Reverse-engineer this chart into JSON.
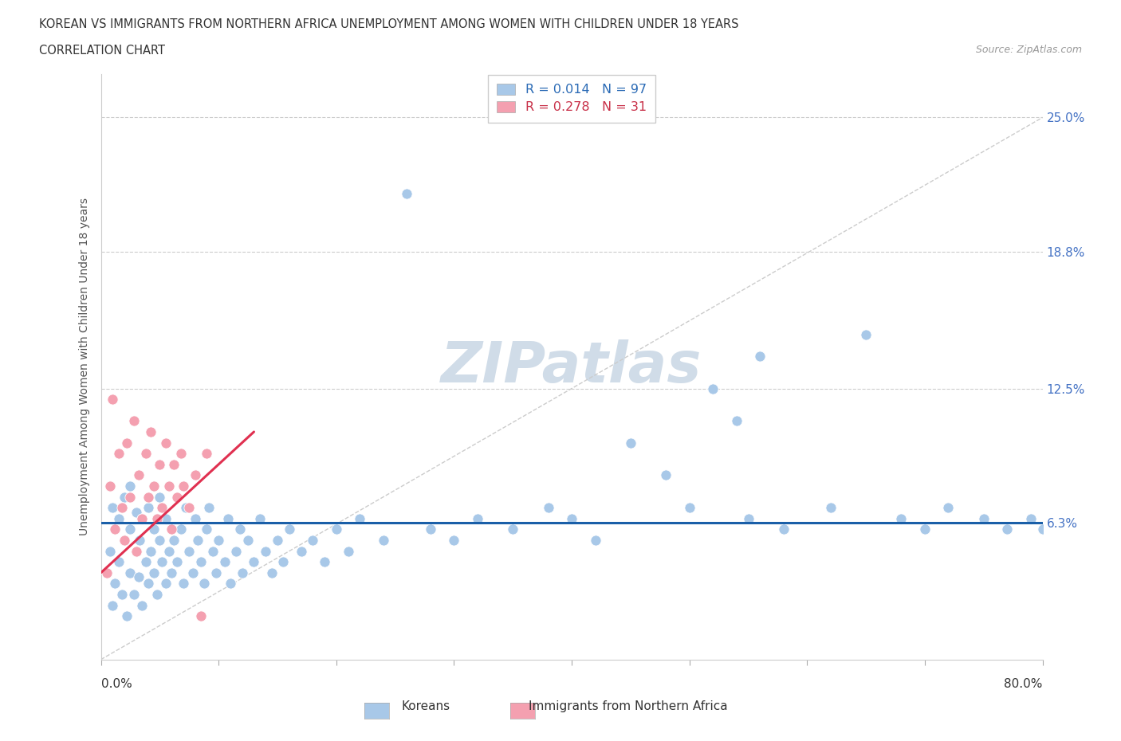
{
  "title_line1": "KOREAN VS IMMIGRANTS FROM NORTHERN AFRICA UNEMPLOYMENT AMONG WOMEN WITH CHILDREN UNDER 18 YEARS",
  "title_line2": "CORRELATION CHART",
  "source": "Source: ZipAtlas.com",
  "ylabel": "Unemployment Among Women with Children Under 18 years",
  "xlim": [
    0.0,
    0.8
  ],
  "ylim": [
    0.0,
    0.27
  ],
  "korean_R": 0.014,
  "korean_N": 97,
  "africa_R": 0.278,
  "africa_N": 31,
  "korean_color": "#a8c8e8",
  "africa_color": "#f4a0b0",
  "korean_line_color": "#1a5fa8",
  "africa_line_color": "#e03050",
  "ytick_vals": [
    0.063,
    0.125,
    0.188,
    0.25
  ],
  "ytick_labels": [
    "6.3%",
    "12.5%",
    "18.8%",
    "25.0%"
  ],
  "watermark_color": "#d0dce8",
  "korean_x": [
    0.005,
    0.008,
    0.01,
    0.01,
    0.012,
    0.015,
    0.015,
    0.018,
    0.02,
    0.02,
    0.022,
    0.025,
    0.025,
    0.025,
    0.028,
    0.03,
    0.03,
    0.032,
    0.033,
    0.035,
    0.035,
    0.038,
    0.04,
    0.04,
    0.042,
    0.045,
    0.045,
    0.048,
    0.05,
    0.05,
    0.052,
    0.055,
    0.055,
    0.058,
    0.06,
    0.062,
    0.065,
    0.068,
    0.07,
    0.072,
    0.075,
    0.078,
    0.08,
    0.082,
    0.085,
    0.088,
    0.09,
    0.092,
    0.095,
    0.098,
    0.1,
    0.105,
    0.108,
    0.11,
    0.115,
    0.118,
    0.12,
    0.125,
    0.13,
    0.135,
    0.14,
    0.145,
    0.15,
    0.155,
    0.16,
    0.17,
    0.18,
    0.19,
    0.2,
    0.21,
    0.22,
    0.24,
    0.26,
    0.28,
    0.3,
    0.32,
    0.35,
    0.38,
    0.4,
    0.42,
    0.45,
    0.48,
    0.5,
    0.52,
    0.55,
    0.58,
    0.62,
    0.65,
    0.68,
    0.7,
    0.72,
    0.75,
    0.77,
    0.79,
    0.8,
    0.54,
    0.56
  ],
  "korean_y": [
    0.04,
    0.05,
    0.025,
    0.07,
    0.035,
    0.045,
    0.065,
    0.03,
    0.055,
    0.075,
    0.02,
    0.04,
    0.06,
    0.08,
    0.03,
    0.05,
    0.068,
    0.038,
    0.055,
    0.025,
    0.065,
    0.045,
    0.035,
    0.07,
    0.05,
    0.04,
    0.06,
    0.03,
    0.055,
    0.075,
    0.045,
    0.035,
    0.065,
    0.05,
    0.04,
    0.055,
    0.045,
    0.06,
    0.035,
    0.07,
    0.05,
    0.04,
    0.065,
    0.055,
    0.045,
    0.035,
    0.06,
    0.07,
    0.05,
    0.04,
    0.055,
    0.045,
    0.065,
    0.035,
    0.05,
    0.06,
    0.04,
    0.055,
    0.045,
    0.065,
    0.05,
    0.04,
    0.055,
    0.045,
    0.06,
    0.05,
    0.055,
    0.045,
    0.06,
    0.05,
    0.065,
    0.055,
    0.215,
    0.06,
    0.055,
    0.065,
    0.06,
    0.07,
    0.065,
    0.055,
    0.1,
    0.085,
    0.07,
    0.125,
    0.065,
    0.06,
    0.07,
    0.15,
    0.065,
    0.06,
    0.07,
    0.065,
    0.06,
    0.065,
    0.06,
    0.11,
    0.14
  ],
  "africa_x": [
    0.005,
    0.008,
    0.01,
    0.012,
    0.015,
    0.018,
    0.02,
    0.022,
    0.025,
    0.028,
    0.03,
    0.032,
    0.035,
    0.038,
    0.04,
    0.042,
    0.045,
    0.048,
    0.05,
    0.052,
    0.055,
    0.058,
    0.06,
    0.062,
    0.065,
    0.068,
    0.07,
    0.075,
    0.08,
    0.085,
    0.09
  ],
  "africa_y": [
    0.04,
    0.08,
    0.12,
    0.06,
    0.095,
    0.07,
    0.055,
    0.1,
    0.075,
    0.11,
    0.05,
    0.085,
    0.065,
    0.095,
    0.075,
    0.105,
    0.08,
    0.065,
    0.09,
    0.07,
    0.1,
    0.08,
    0.06,
    0.09,
    0.075,
    0.095,
    0.08,
    0.07,
    0.085,
    0.02,
    0.095
  ],
  "korean_trendline_x": [
    0.0,
    0.8
  ],
  "korean_trendline_y": [
    0.063,
    0.063
  ],
  "africa_trendline_x": [
    0.0,
    0.13
  ],
  "africa_trendline_y": [
    0.04,
    0.105
  ]
}
